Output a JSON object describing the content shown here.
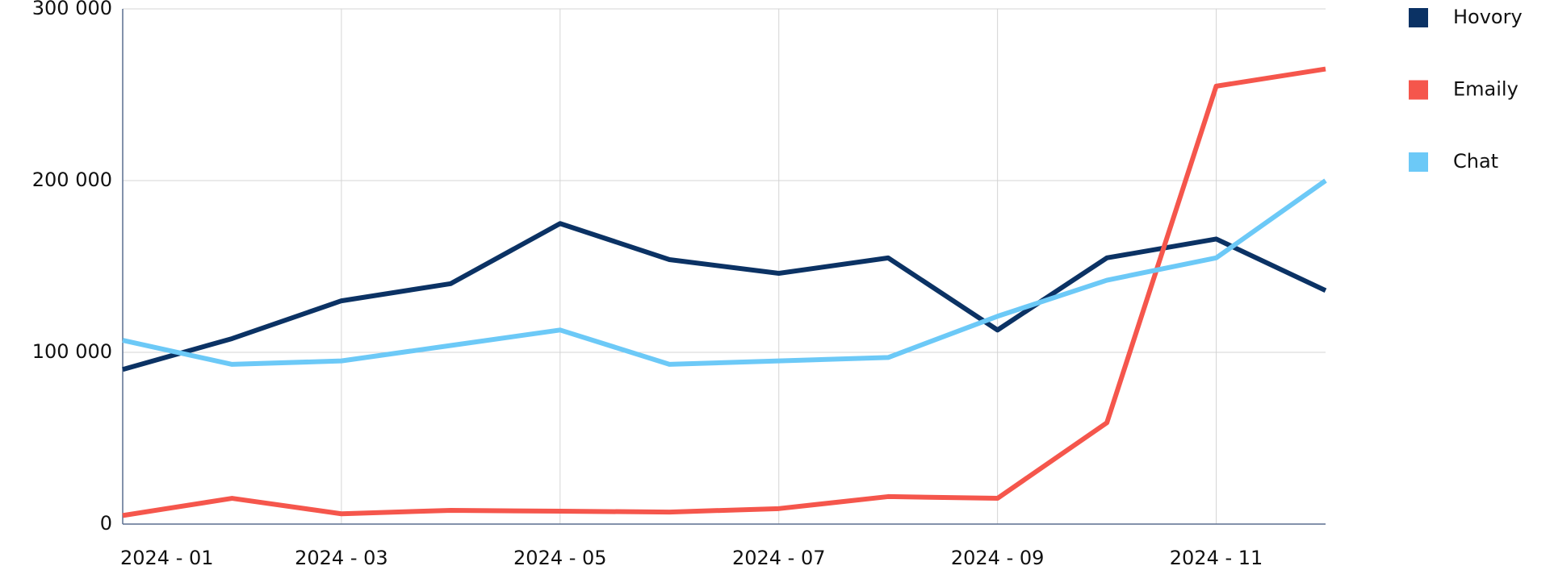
{
  "chart_data": {
    "type": "line",
    "categories": [
      "2024 - 01",
      null,
      "2024 - 03",
      null,
      "2024 - 05",
      null,
      "2024 - 07",
      null,
      "2024 - 09",
      null,
      "2024 - 11",
      null
    ],
    "series": [
      {
        "name": "Hovory",
        "color": "#0b3264",
        "values": [
          90000,
          108000,
          130000,
          140000,
          175000,
          154000,
          146000,
          155000,
          113000,
          155000,
          166000,
          136000
        ]
      },
      {
        "name": "Emaily",
        "color": "#f5564c",
        "values": [
          5000,
          15000,
          6000,
          8000,
          7500,
          7000,
          9000,
          16000,
          15000,
          59000,
          255000,
          265000
        ]
      },
      {
        "name": "Chat",
        "color": "#6cc9f7",
        "values": [
          107000,
          93000,
          95000,
          104000,
          113000,
          93000,
          95000,
          97000,
          121000,
          142000,
          155000,
          200000
        ]
      }
    ],
    "ylim": [
      0,
      300000
    ],
    "yticks": [
      0,
      {
        "value": 100000,
        "label": "100 000"
      },
      {
        "value": 200000,
        "label": "200 000"
      },
      {
        "value": 300000,
        "label": "300 000"
      }
    ],
    "grid": true,
    "legend": "right"
  }
}
